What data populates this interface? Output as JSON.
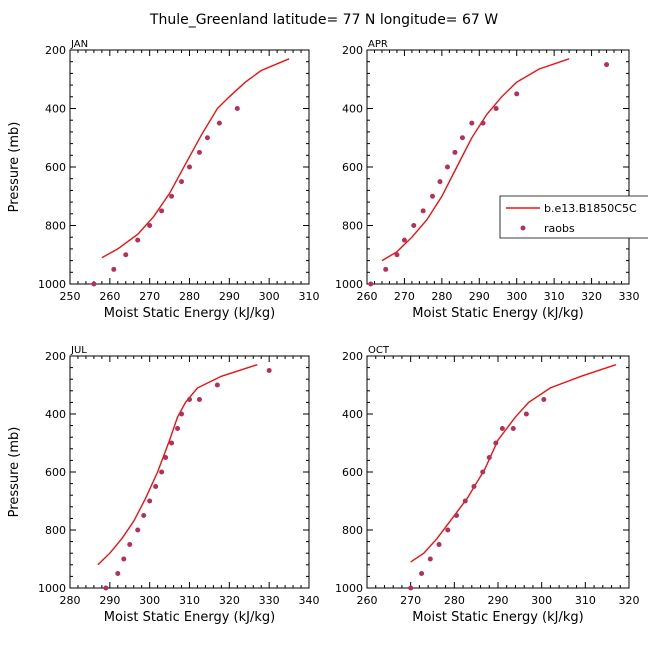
{
  "title": "Thule_Greenland   latitude= 77 N longitude= 67 W",
  "chart_data": [
    {
      "type": "line",
      "month": "JAN",
      "xlabel": "Moist Static Energy (kJ/kg)",
      "ylabel": "Pressure (mb)",
      "xlim": [
        250,
        310
      ],
      "xticks": [
        250,
        260,
        270,
        280,
        290,
        300,
        310
      ],
      "ylim": [
        1000,
        200
      ],
      "yticks": [
        200,
        400,
        600,
        800,
        1000
      ],
      "model_series": {
        "name": "b.e13.B1850C5C",
        "x": [
          258,
          262,
          267,
          271,
          275,
          279,
          283,
          287,
          290,
          294,
          298,
          305
        ],
        "y": [
          910,
          880,
          830,
          770,
          690,
          590,
          490,
          400,
          360,
          310,
          270,
          230
        ]
      },
      "obs_series": {
        "name": "raobs",
        "x": [
          256,
          261,
          264,
          267,
          270,
          273,
          275.5,
          278,
          280,
          282.5,
          284.5,
          287.5,
          292
        ],
        "y": [
          1000,
          950,
          900,
          850,
          800,
          750,
          700,
          650,
          600,
          550,
          500,
          450,
          400
        ]
      }
    },
    {
      "type": "line",
      "month": "APR",
      "xlabel": "Moist Static Energy (kJ/kg)",
      "ylabel": "Pressure (mb)",
      "xlim": [
        260,
        330
      ],
      "xticks": [
        260,
        270,
        280,
        290,
        300,
        310,
        320,
        330
      ],
      "ylim": [
        1000,
        200
      ],
      "yticks": [
        200,
        400,
        600,
        800,
        1000
      ],
      "legend": {
        "position": "right",
        "entries": [
          "b.e13.B1850C5C",
          "raobs"
        ]
      },
      "model_series": {
        "name": "b.e13.B1850C5C",
        "x": [
          264,
          268,
          272,
          276,
          280,
          284,
          288,
          292,
          296,
          300,
          306,
          314
        ],
        "y": [
          920,
          890,
          840,
          780,
          700,
          600,
          500,
          420,
          360,
          310,
          265,
          230
        ]
      },
      "obs_series": {
        "name": "raobs",
        "x": [
          261,
          265,
          268,
          270,
          272.5,
          275,
          277.5,
          279.5,
          281.5,
          283.5,
          285.5,
          288,
          291,
          294.5,
          300,
          324
        ],
        "y": [
          1000,
          950,
          900,
          850,
          800,
          750,
          700,
          650,
          600,
          550,
          500,
          450,
          450,
          400,
          350,
          250
        ]
      }
    },
    {
      "type": "line",
      "month": "JUL",
      "xlabel": "Moist Static Energy (kJ/kg)",
      "ylabel": "Pressure (mb)",
      "xlim": [
        280,
        340
      ],
      "xticks": [
        280,
        290,
        300,
        310,
        320,
        330,
        340
      ],
      "ylim": [
        1000,
        200
      ],
      "yticks": [
        200,
        400,
        600,
        800,
        1000
      ],
      "model_series": {
        "name": "b.e13.B1850C5C",
        "x": [
          287,
          290,
          293,
          296,
          299,
          302,
          305,
          307,
          309,
          312,
          318,
          327
        ],
        "y": [
          920,
          880,
          830,
          770,
          690,
          600,
          490,
          410,
          360,
          310,
          270,
          230
        ]
      },
      "obs_series": {
        "name": "raobs",
        "x": [
          289,
          292,
          293.5,
          295,
          297,
          298.5,
          300,
          301.5,
          303,
          304,
          305.5,
          307,
          308,
          310,
          312.5,
          317,
          330
        ],
        "y": [
          1000,
          950,
          900,
          850,
          800,
          750,
          700,
          650,
          600,
          550,
          500,
          450,
          400,
          350,
          350,
          300,
          250
        ]
      }
    },
    {
      "type": "line",
      "month": "OCT",
      "xlabel": "Moist Static Energy (kJ/kg)",
      "ylabel": "Pressure (mb)",
      "xlim": [
        260,
        320
      ],
      "xticks": [
        260,
        270,
        280,
        290,
        300,
        310,
        320
      ],
      "ylim": [
        1000,
        200
      ],
      "yticks": [
        200,
        400,
        600,
        800,
        1000
      ],
      "model_series": {
        "name": "b.e13.B1850C5C",
        "x": [
          270,
          273,
          276,
          279,
          283,
          287,
          290,
          294,
          297,
          302,
          309,
          317
        ],
        "y": [
          910,
          880,
          830,
          770,
          690,
          590,
          490,
          410,
          360,
          310,
          270,
          230
        ]
      },
      "obs_series": {
        "name": "raobs",
        "x": [
          270,
          272.5,
          274.5,
          276.5,
          278.5,
          280.5,
          282.5,
          284.5,
          286.5,
          288,
          289.5,
          291,
          293.5,
          296.5,
          300.5
        ],
        "y": [
          1000,
          950,
          900,
          850,
          800,
          750,
          700,
          650,
          600,
          550,
          500,
          450,
          450,
          400,
          350
        ]
      }
    }
  ]
}
